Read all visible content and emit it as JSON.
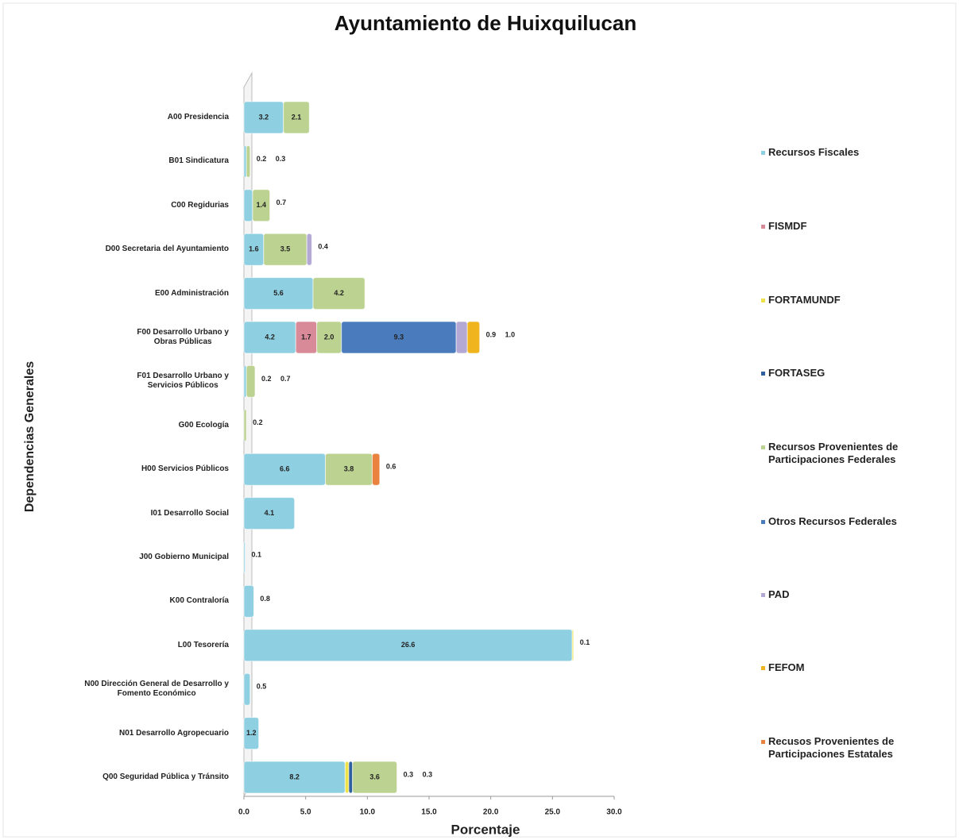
{
  "chart_data": {
    "type": "stacked-barh",
    "title": "Ayuntamiento de Huixquilucan",
    "xlabel": "Porcentaje",
    "ylabel": "Dependencias Generales",
    "categories": [
      "A00 Presidencia",
      "B01 Sindicatura",
      "C00 Regidurias",
      "D00 Secretaria del Ayuntamiento",
      "E00 Administración",
      "F00 Desarrollo Urbano y\nObras Públicas",
      "F01 Desarrollo Urbano y\nServicios Públicos",
      "G00 Ecología",
      "H00 Servicios Públicos",
      "I01 Desarrollo Social",
      "J00 Gobierno Municipal",
      "K00 Contraloría",
      "L00 Tesorería",
      "N00 Dirección General de Desarrollo y\nFomento Económico",
      "N01 Desarrollo Agropecuario",
      "Q00 Seguridad Pública y Tránsito"
    ],
    "series": [
      {
        "name": "Recursos Fiscales",
        "color": "#8ecfe2",
        "values": [
          3.2,
          0.2,
          0.7,
          1.6,
          5.6,
          4.2,
          0.2,
          null,
          6.6,
          4.1,
          0.1,
          0.8,
          26.6,
          0.5,
          1.2,
          8.2
        ]
      },
      {
        "name": "FISMDF",
        "color": "#d98a98",
        "values": [
          null,
          null,
          null,
          null,
          null,
          1.7,
          null,
          null,
          null,
          null,
          null,
          null,
          null,
          null,
          null,
          null
        ]
      },
      {
        "name": "FORTAMUNDF",
        "color": "#eee24a",
        "values": [
          null,
          null,
          null,
          null,
          null,
          null,
          null,
          null,
          null,
          null,
          null,
          null,
          0.1,
          null,
          null,
          0.3
        ]
      },
      {
        "name": "FORTASEG",
        "color": "#2f5f9e",
        "values": [
          null,
          null,
          null,
          null,
          null,
          null,
          null,
          null,
          null,
          null,
          null,
          null,
          null,
          null,
          null,
          0.3
        ]
      },
      {
        "name": "Recursos Provenientes de\nParticipaciones Federales",
        "color": "#bcd291",
        "values": [
          2.1,
          0.3,
          1.4,
          3.5,
          4.2,
          2.0,
          0.7,
          0.2,
          3.8,
          null,
          null,
          null,
          null,
          null,
          null,
          3.6
        ],
        "value_labels": [
          "2.1",
          "0.3",
          "1.4",
          "3.5",
          "4.2",
          "2.0",
          "0.7",
          "0.2",
          "3.8",
          null,
          null,
          null,
          null,
          null,
          null,
          "3.6"
        ]
      },
      {
        "name": "Otros Recursos Federales",
        "color": "#4a7bbd",
        "values": [
          null,
          null,
          null,
          null,
          null,
          9.3,
          null,
          null,
          null,
          null,
          null,
          null,
          null,
          null,
          null,
          null
        ]
      },
      {
        "name": "PAD",
        "color": "#b4a8d4",
        "values": [
          null,
          null,
          null,
          0.4,
          null,
          0.9,
          null,
          null,
          null,
          null,
          null,
          null,
          null,
          null,
          null,
          null
        ]
      },
      {
        "name": "FEFOM",
        "color": "#f0b41e",
        "values": [
          null,
          null,
          null,
          null,
          null,
          1.0,
          null,
          null,
          null,
          null,
          null,
          null,
          null,
          null,
          null,
          null
        ],
        "value_labels": [
          null,
          null,
          null,
          null,
          null,
          "1.0",
          null,
          null,
          null,
          null,
          null,
          null,
          null,
          null,
          null,
          null
        ]
      },
      {
        "name": "Recusos Provenientes de\nParticipaciones Estatales",
        "color": "#e8823e",
        "values": [
          null,
          null,
          null,
          null,
          null,
          null,
          null,
          null,
          0.6,
          null,
          null,
          null,
          null,
          null,
          null,
          null
        ]
      }
    ],
    "xlim": [
      0,
      30
    ],
    "xticks": [
      {
        "value": 0,
        "label": "0.0"
      },
      {
        "value": 5,
        "label": "5.0"
      },
      {
        "value": 10,
        "label": "10.0"
      },
      {
        "value": 15,
        "label": "15.0"
      },
      {
        "value": 20,
        "label": "20.0"
      },
      {
        "value": 25,
        "label": "25.0"
      },
      {
        "value": 30,
        "label": "30.0"
      }
    ],
    "legend": "right"
  }
}
